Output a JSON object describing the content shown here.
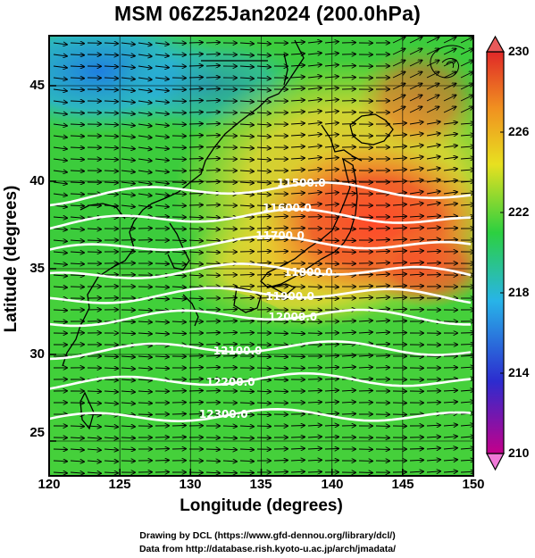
{
  "title": "MSM 06Z25Jan2024 (200.0hPa)",
  "x_axis": {
    "label": "Longitude (degrees)",
    "ticks": [
      "120",
      "125",
      "130",
      "135",
      "140",
      "145",
      "150"
    ],
    "range": [
      120,
      150
    ]
  },
  "y_axis": {
    "label": "Latitude  (degrees)",
    "ticks": [
      "25",
      "30",
      "35",
      "40",
      "45"
    ],
    "range": [
      22.4,
      47.6
    ]
  },
  "colorbar": {
    "ticks": [
      "210",
      "214",
      "218",
      "222",
      "226",
      "230"
    ],
    "range": [
      210,
      230
    ],
    "colors": [
      "#c4008a",
      "#2c2ccf",
      "#28b4e8",
      "#2cd040",
      "#e8e020",
      "#f09020",
      "#e02828"
    ]
  },
  "contours": [
    {
      "label": "11500.0",
      "lat": 38.2
    },
    {
      "label": "11600.0",
      "lat": 36.7
    },
    {
      "label": "11700.0",
      "lat": 35.2
    },
    {
      "label": "11800.0",
      "lat": 33.7
    },
    {
      "label": "11900.0",
      "lat": 32.4
    },
    {
      "label": "12000.0",
      "lat": 31.2
    },
    {
      "label": "12100.0",
      "lat": 29.4
    },
    {
      "label": "12200.0",
      "lat": 27.6
    },
    {
      "label": "12300.0",
      "lat": 25.6
    }
  ],
  "credits": {
    "line1": "Drawing by DCL (https://www.gfd-dennou.org/library/dcl/)",
    "line2": "Data from http://database.rish.kyoto-u.ac.jp/arch/jmadata/"
  }
}
